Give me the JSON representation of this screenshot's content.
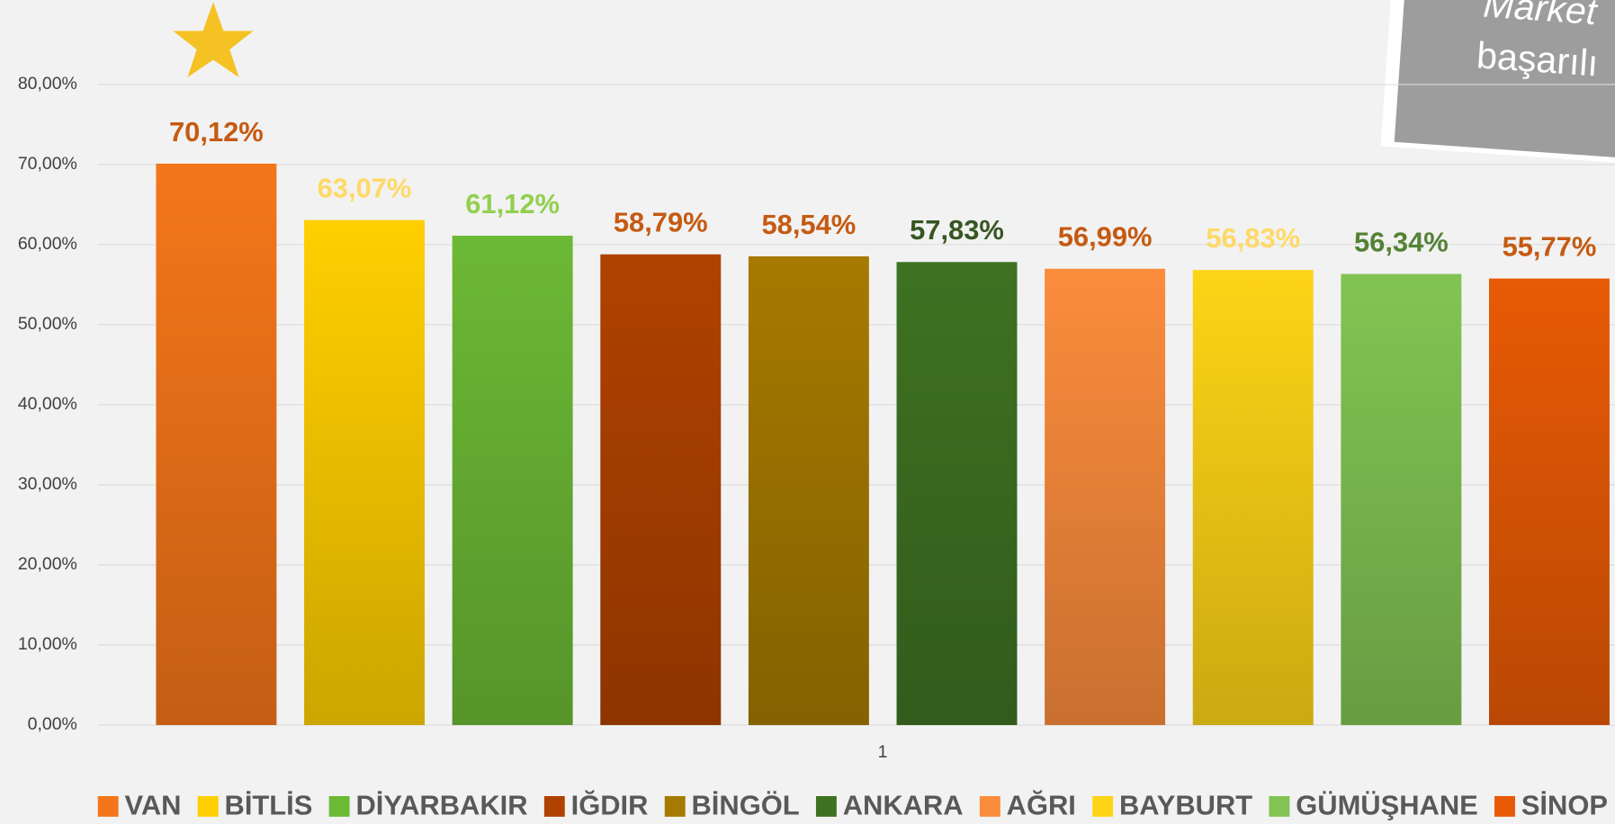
{
  "chart_data": {
    "type": "bar",
    "categories": [
      "1"
    ],
    "series": [
      {
        "name": "VAN",
        "color": "#f5761a",
        "label_color": "#c55a11",
        "values": [
          70.12
        ],
        "value_labels": [
          "70,12%"
        ]
      },
      {
        "name": "BİTLİS",
        "color": "#ffcf00",
        "label_color": "#ffd966",
        "values": [
          63.07
        ],
        "value_labels": [
          "63,07%"
        ]
      },
      {
        "name": "DİYARBAKIR",
        "color": "#6cb935",
        "label_color": "#92d050",
        "values": [
          61.12
        ],
        "value_labels": [
          "61,12%"
        ]
      },
      {
        "name": "IĞDIR",
        "color": "#b04200",
        "label_color": "#c55a11",
        "values": [
          58.79
        ],
        "value_labels": [
          "58,79%"
        ]
      },
      {
        "name": "BİNGÖL",
        "color": "#a67a00",
        "label_color": "#c55a11",
        "values": [
          58.54
        ],
        "value_labels": [
          "58,54%"
        ]
      },
      {
        "name": "ANKARA",
        "color": "#3e7222",
        "label_color": "#375623",
        "values": [
          57.83
        ],
        "value_labels": [
          "57,83%"
        ]
      },
      {
        "name": "AĞRI",
        "color": "#fb8c3c",
        "label_color": "#c55a11",
        "values": [
          56.99
        ],
        "value_labels": [
          "56,99%"
        ]
      },
      {
        "name": "BAYBURT",
        "color": "#fdd416",
        "label_color": "#ffd966",
        "values": [
          56.83
        ],
        "value_labels": [
          "56,83%"
        ]
      },
      {
        "name": "GÜMÜŞHANE",
        "color": "#82c453",
        "label_color": "#548235",
        "values": [
          56.34
        ],
        "value_labels": [
          "56,34%"
        ]
      },
      {
        "name": "SİNOP",
        "color": "#e85a05",
        "label_color": "#c55a11",
        "values": [
          55.77
        ],
        "value_labels": [
          "55,77%"
        ]
      }
    ],
    "ylim": [
      0,
      80
    ],
    "yticks": [
      {
        "value": 0,
        "label": "0,00%"
      },
      {
        "value": 10,
        "label": "10,00%"
      },
      {
        "value": 20,
        "label": "20,00%"
      },
      {
        "value": 30,
        "label": "30,00%"
      },
      {
        "value": 40,
        "label": "40,00%"
      },
      {
        "value": 50,
        "label": "50,00%"
      },
      {
        "value": 60,
        "label": "60,00%"
      },
      {
        "value": 70,
        "label": "70,00%"
      },
      {
        "value": 80,
        "label": "80,00%"
      }
    ],
    "grid": true,
    "legend": "bottom",
    "annotations": [
      "Market",
      "başarılı"
    ]
  }
}
